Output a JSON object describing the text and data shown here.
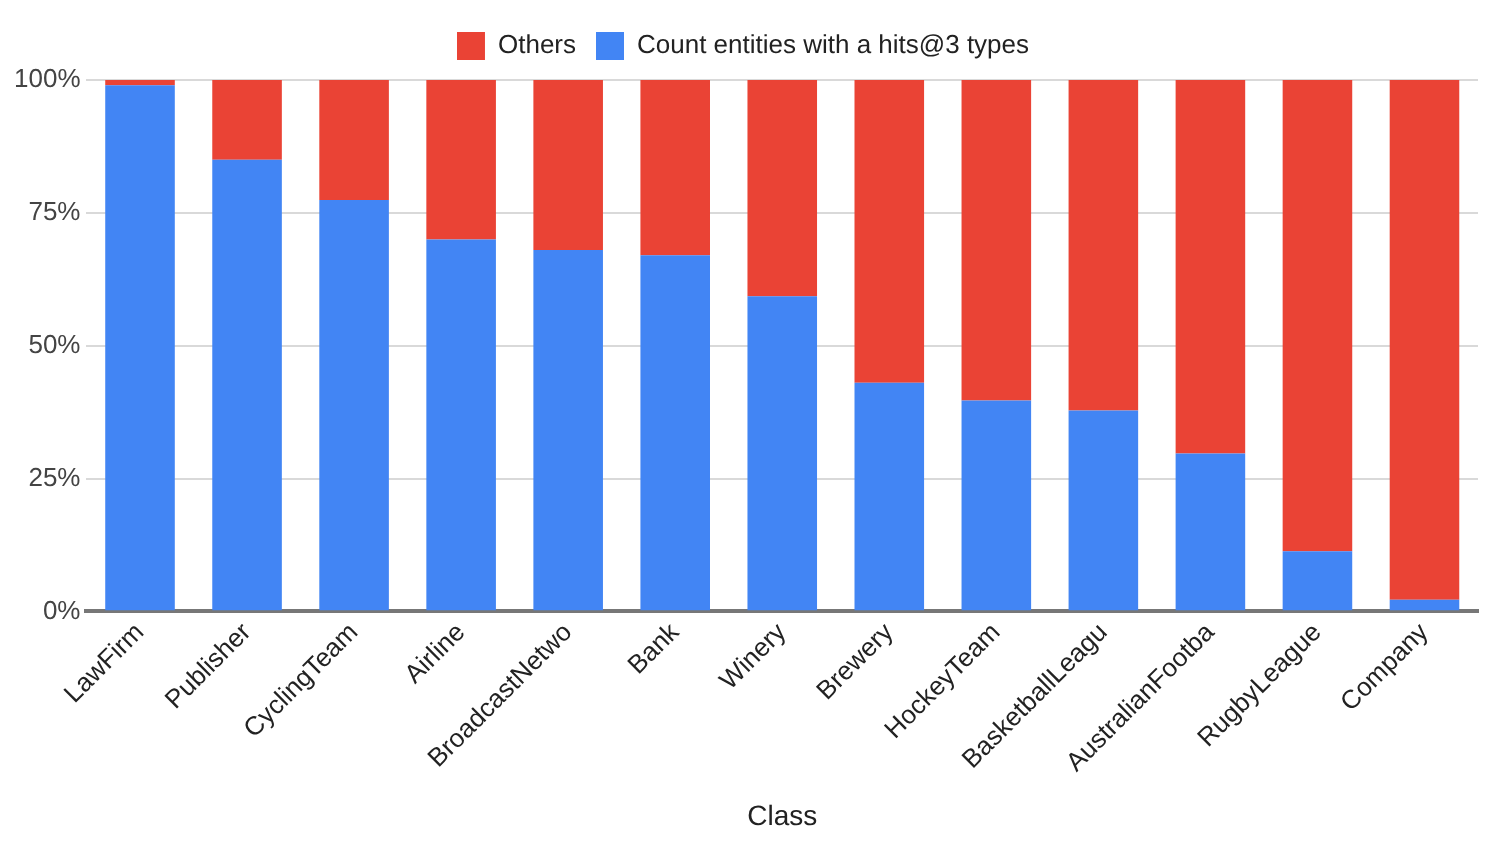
{
  "chart_data": {
    "type": "bar",
    "stacked": true,
    "xlabel": "Class",
    "categories": [
      "LawFirm",
      "Publisher",
      "CyclingTeam",
      "Airline",
      "BroadcastNetwo",
      "Bank",
      "Winery",
      "Brewery",
      "HockeyTeam",
      "BasketballLeagu",
      "AustralianFootba",
      "RugbyLeague",
      "Company"
    ],
    "series": [
      {
        "name": "Count entities with a hits@3 types",
        "color": "#4285f4",
        "values": [
          99,
          85,
          77.4,
          70,
          68,
          67,
          59.3,
          43,
          39.7,
          37.8,
          29.7,
          11.3,
          2.2
        ]
      },
      {
        "name": "Others",
        "color": "#ea4335",
        "values": [
          1,
          15,
          22.6,
          30,
          32,
          33,
          40.7,
          57,
          60.3,
          62.2,
          70.3,
          88.7,
          97.8
        ]
      }
    ],
    "ylim": [
      0,
      100
    ],
    "yticks": [
      {
        "value": 0,
        "label": "0%"
      },
      {
        "value": 25,
        "label": "25%"
      },
      {
        "value": 50,
        "label": "50%"
      },
      {
        "value": 75,
        "label": "75%"
      },
      {
        "value": 100,
        "label": "100%"
      }
    ],
    "grid": "y",
    "legend": "top"
  }
}
